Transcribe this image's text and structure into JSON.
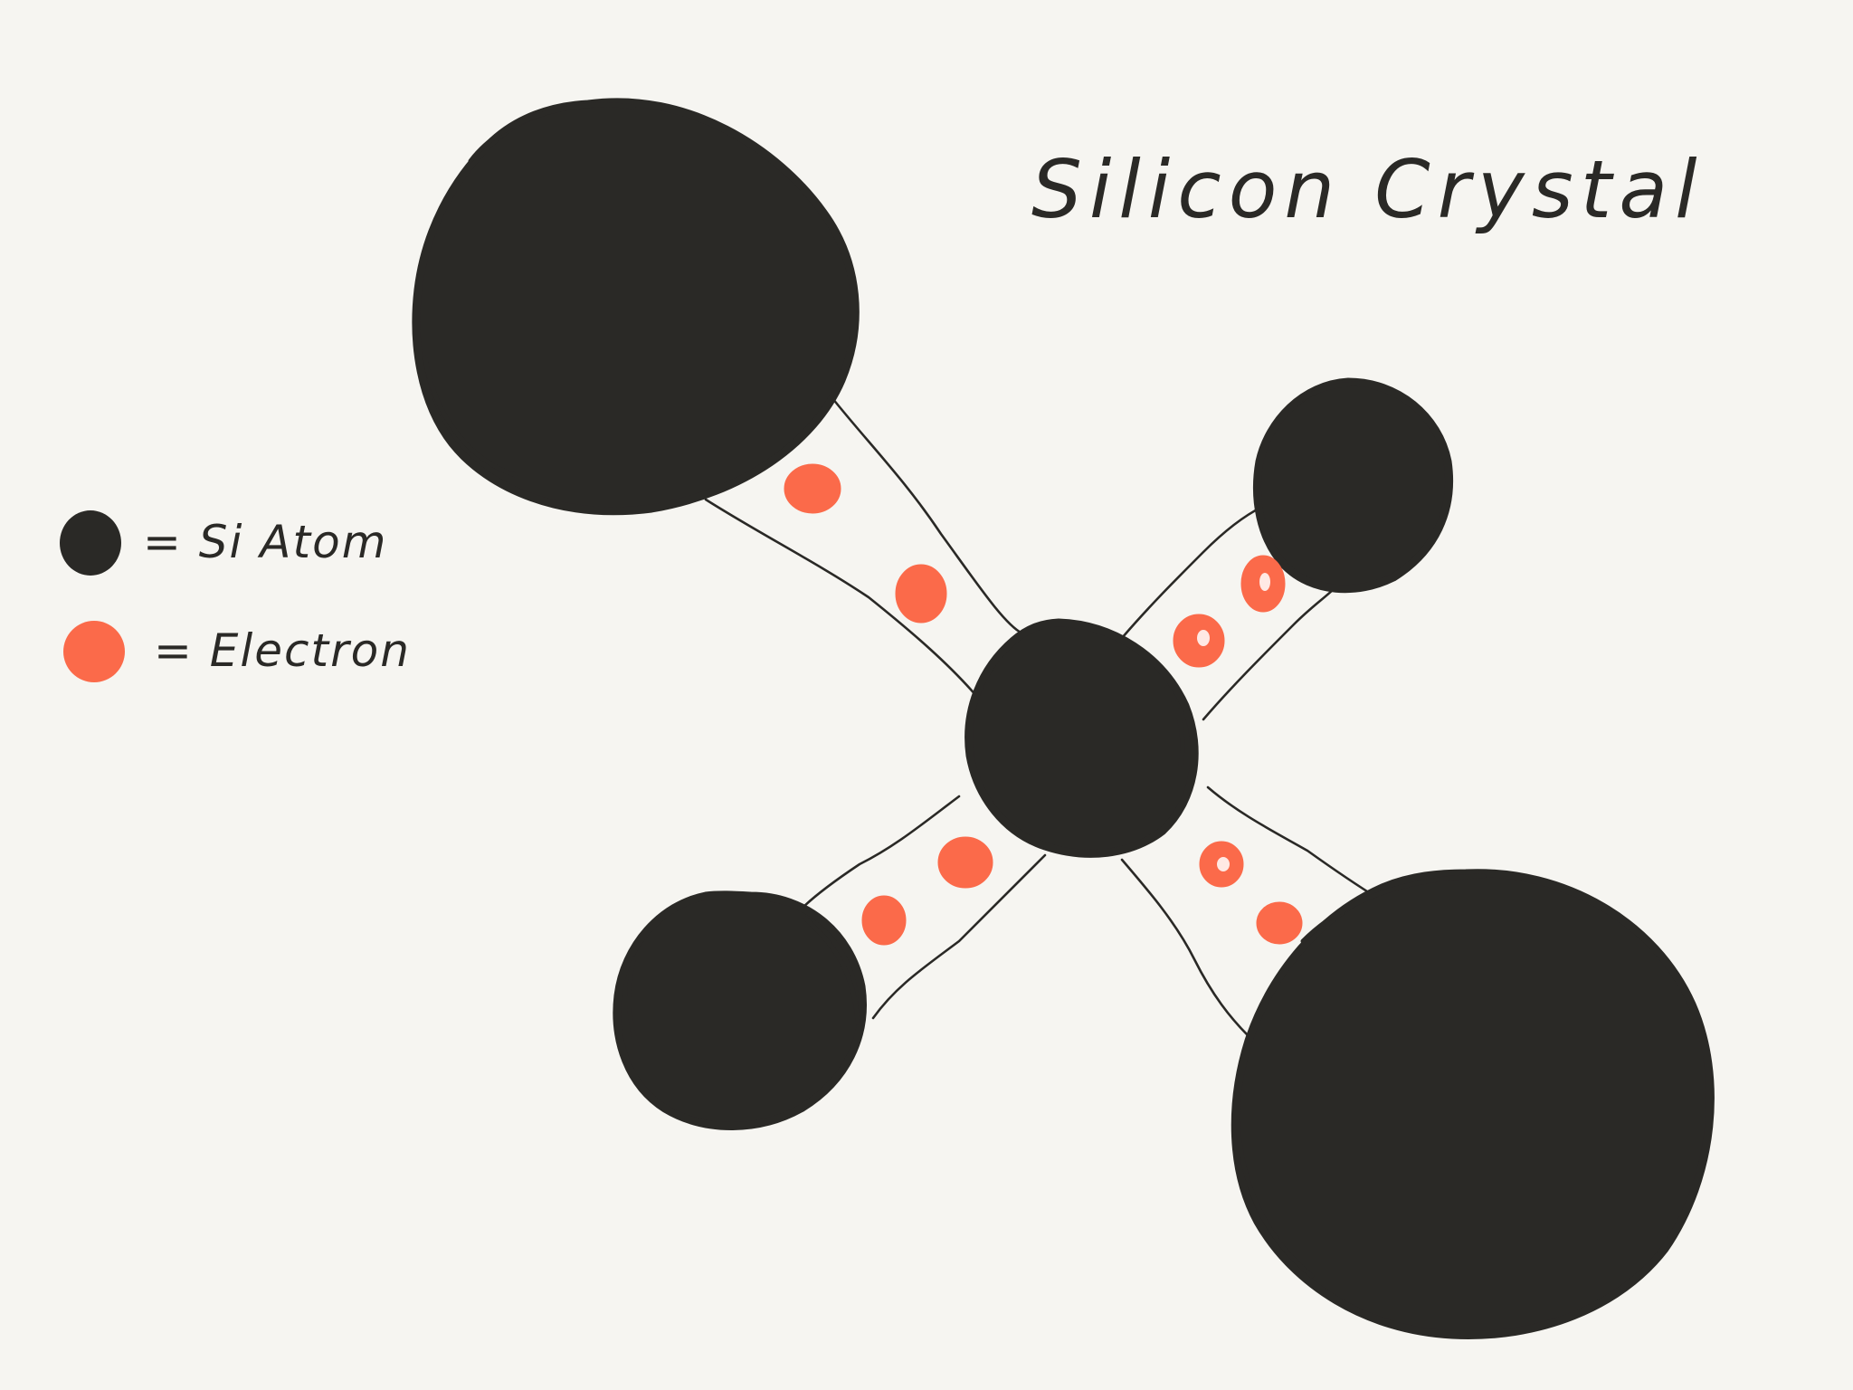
{
  "title": "Silicon Crystal",
  "legend": {
    "atom_label": "= Si Atom",
    "electron_label": "= Electron"
  },
  "colors": {
    "background": "#f6f5f1",
    "atom": "#2a2926",
    "electron": "#fb6a4a",
    "ink": "#2a2926"
  },
  "diagram": {
    "center_atom": "Si atom",
    "neighbor_atoms": 4,
    "bonds": 4,
    "electrons_per_bond": 2
  }
}
